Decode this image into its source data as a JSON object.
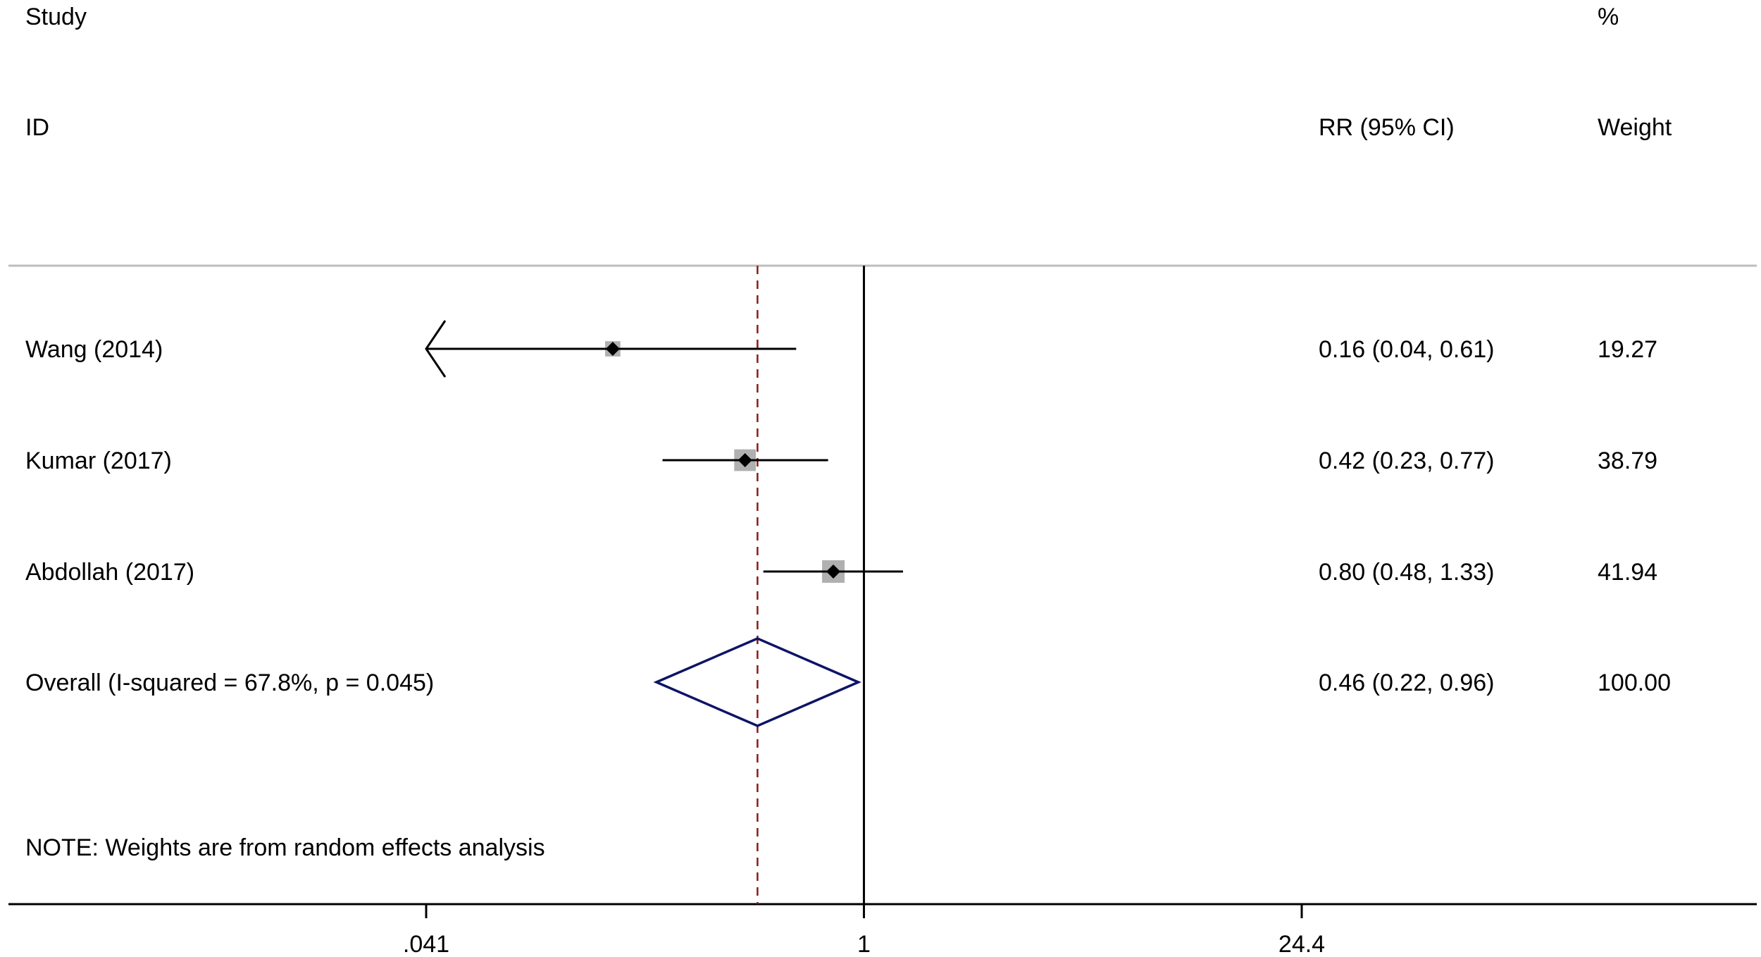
{
  "chart_data": {
    "type": "forest",
    "headers": {
      "study_top": "Study",
      "study_bottom": "ID",
      "effect": "RR (95% CI)",
      "weight_top": "%",
      "weight_bottom": "Weight"
    },
    "studies": [
      {
        "label": "Wang (2014)",
        "rr": 0.16,
        "lower": 0.04,
        "upper": 0.61,
        "ci_text": "0.16 (0.04, 0.61)",
        "weight": 19.27,
        "weight_text": "19.27",
        "truncated_lower": true
      },
      {
        "label": "Kumar (2017)",
        "rr": 0.42,
        "lower": 0.23,
        "upper": 0.77,
        "ci_text": "0.42 (0.23, 0.77)",
        "weight": 38.79,
        "weight_text": "38.79"
      },
      {
        "label": "Abdollah (2017)",
        "rr": 0.8,
        "lower": 0.48,
        "upper": 1.33,
        "ci_text": "0.80 (0.48, 1.33)",
        "weight": 41.94,
        "weight_text": "41.94"
      }
    ],
    "overall": {
      "label": "Overall  (I-squared = 67.8%, p = 0.045)",
      "rr": 0.46,
      "lower": 0.22,
      "upper": 0.96,
      "ci_text": "0.46 (0.22, 0.96)",
      "weight": 100.0,
      "weight_text": "100.00"
    },
    "note": "NOTE: Weights are from random effects analysis",
    "x_axis": {
      "scale": "log",
      "range": [
        0.041,
        24.4
      ],
      "ticks": [
        0.041,
        1,
        24.4
      ],
      "tick_labels": [
        ".041",
        "1",
        "24.4"
      ],
      "null_line": 1
    },
    "colors": {
      "text": "#000000",
      "ci_line": "#000000",
      "weight_box": "#b0b0b0",
      "point": "#000000",
      "diamond": "#0d1466",
      "overall_line": "#8b1a1a",
      "divider": "#bdbdbd",
      "axis": "#000000"
    }
  }
}
